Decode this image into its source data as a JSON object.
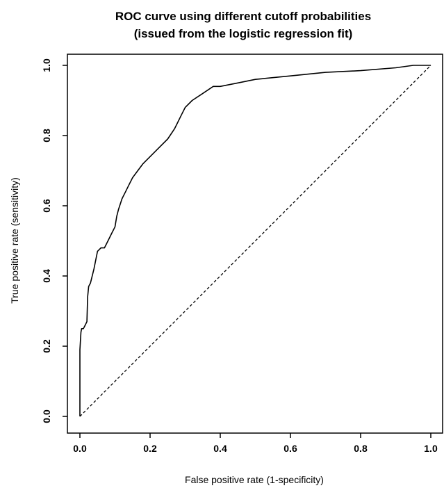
{
  "chart_data": {
    "type": "line",
    "title": "ROC curve using different cutoff probabilities",
    "subtitle": "(issued from the logistic regression fit)",
    "xlabel": "False positive rate (1-specificity)",
    "ylabel": "True positive rate (sensitivity)",
    "xlim": [
      0,
      1
    ],
    "ylim": [
      0,
      1
    ],
    "x_ticks": [
      "0.0",
      "0.2",
      "0.4",
      "0.6",
      "0.8",
      "1.0"
    ],
    "y_ticks": [
      "0.0",
      "0.2",
      "0.4",
      "0.6",
      "0.8",
      "1.0"
    ],
    "grid": false,
    "legend": "none",
    "series": [
      {
        "style": "solid",
        "color": "#000000",
        "x": [
          0.0,
          0.0,
          0.003,
          0.005,
          0.01,
          0.015,
          0.02,
          0.022,
          0.025,
          0.03,
          0.04,
          0.05,
          0.06,
          0.07,
          0.08,
          0.09,
          0.1,
          0.105,
          0.11,
          0.12,
          0.13,
          0.14,
          0.15,
          0.165,
          0.18,
          0.2,
          0.22,
          0.25,
          0.27,
          0.29,
          0.3,
          0.32,
          0.35,
          0.38,
          0.4,
          0.45,
          0.5,
          0.6,
          0.7,
          0.8,
          0.9,
          0.95,
          1.0
        ],
        "y": [
          0.0,
          0.19,
          0.24,
          0.25,
          0.25,
          0.26,
          0.27,
          0.34,
          0.37,
          0.38,
          0.42,
          0.47,
          0.48,
          0.48,
          0.5,
          0.52,
          0.54,
          0.57,
          0.59,
          0.62,
          0.64,
          0.66,
          0.68,
          0.7,
          0.72,
          0.74,
          0.76,
          0.79,
          0.82,
          0.86,
          0.88,
          0.9,
          0.92,
          0.94,
          0.94,
          0.95,
          0.96,
          0.97,
          0.98,
          0.985,
          0.993,
          1.0,
          1.0
        ]
      },
      {
        "style": "dashed",
        "color": "#000000",
        "x": [
          0,
          1
        ],
        "y": [
          0,
          1
        ]
      }
    ]
  }
}
